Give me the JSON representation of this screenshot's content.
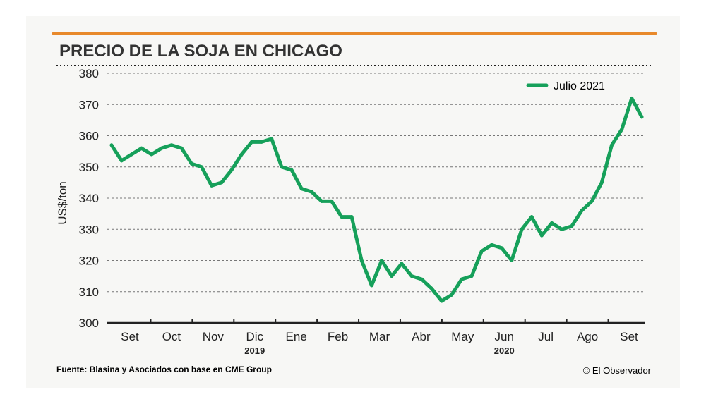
{
  "colors": {
    "accent_bar": "#e8892b",
    "line": "#16a05a",
    "title": "#333333",
    "text": "#222222",
    "grid": "#777777"
  },
  "chart_data": {
    "type": "line",
    "title": "PRECIO DE LA SOJA EN CHICAGO",
    "ylabel": "US$/ton",
    "xlabel": "",
    "ylim": [
      300,
      380
    ],
    "yticks": [
      300,
      310,
      320,
      330,
      340,
      350,
      360,
      370,
      380
    ],
    "grid": true,
    "legend_position": "top-right",
    "month_labels": [
      "Set",
      "Oct",
      "Nov",
      "Dic",
      "Ene",
      "Feb",
      "Mar",
      "Abr",
      "May",
      "Jun",
      "Jul",
      "Ago",
      "Set"
    ],
    "year_labels": [
      {
        "label": "2019",
        "under_month": "Dic"
      },
      {
        "label": "2020",
        "under_month": "Jun"
      }
    ],
    "series": [
      {
        "name": "Julio 2021",
        "values": [
          357,
          352,
          354,
          356,
          354,
          356,
          357,
          356,
          351,
          350,
          344,
          345,
          349,
          354,
          358,
          358,
          359,
          350,
          349,
          343,
          342,
          339,
          339,
          334,
          334,
          320,
          312,
          320,
          315,
          319,
          315,
          314,
          311,
          307,
          309,
          314,
          315,
          323,
          325,
          324,
          320,
          330,
          334,
          328,
          332,
          330,
          331,
          336,
          339,
          345,
          357,
          362,
          372,
          366
        ]
      }
    ],
    "source": "Fuente: Blasina y Asociados con base en CME Group",
    "credit": "© El Observador"
  }
}
